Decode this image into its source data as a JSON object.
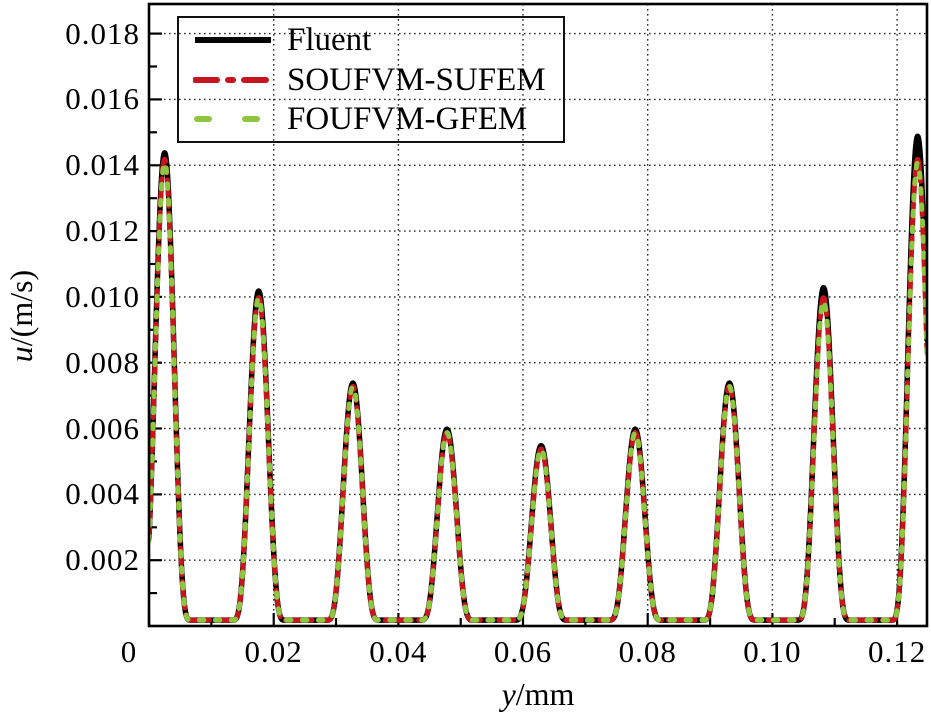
{
  "figure": {
    "background": "#ffffff",
    "frame_color": "#000000",
    "grid_color": "#2a2a2a"
  },
  "chart_data": {
    "type": "line",
    "title": "",
    "xlabel_italic": "y",
    "xlabel_rest": "/mm",
    "ylabel_italic": "u",
    "ylabel_rest": "/(m/s)",
    "xlim": [
      0,
      0.1248
    ],
    "ylim": [
      0,
      0.0189
    ],
    "x_major_ticks": [
      0,
      0.02,
      0.04,
      0.06,
      0.08,
      0.1,
      0.12
    ],
    "x_tick_labels": [
      "0",
      "0.02",
      "0.04",
      "0.06",
      "0.08",
      "0.10",
      "0.12"
    ],
    "x_minor_step": 0.01,
    "y_major_ticks": [
      0.002,
      0.004,
      0.006,
      0.008,
      0.01,
      0.012,
      0.014,
      0.016,
      0.018
    ],
    "y_tick_labels": [
      "0.002",
      "0.004",
      "0.006",
      "0.008",
      "0.010",
      "0.012",
      "0.014",
      "0.016",
      "0.018"
    ],
    "y_minor_step": 0.001,
    "grid": "dotted",
    "legend_position": "top-left",
    "valley_floor": 0.00018,
    "peak_centers": [
      0.0025,
      0.0176,
      0.0327,
      0.0478,
      0.0629,
      0.078,
      0.0931,
      0.1082,
      0.1233
    ],
    "peak_half_width": 0.0042,
    "peak_shape_exponent": 4,
    "series": [
      {
        "name": "Fluent",
        "color": "#000000",
        "style": "solid",
        "peak_heights": [
          0.0142,
          0.01,
          0.0072,
          0.0058,
          0.0053,
          0.0058,
          0.0072,
          0.0101,
          0.0147
        ]
      },
      {
        "name": "SOUFVM-SUFEM",
        "color": "#c8141e",
        "style": "dash-dot",
        "peak_heights": [
          0.014,
          0.0098,
          0.0071,
          0.0057,
          0.0052,
          0.0057,
          0.0071,
          0.0098,
          0.014
        ]
      },
      {
        "name": "FOUFVM-GFEM",
        "color": "#8dc63f",
        "style": "dashed",
        "peak_heights": [
          0.0139,
          0.0098,
          0.0071,
          0.0057,
          0.0052,
          0.0057,
          0.0071,
          0.0097,
          0.0139
        ]
      }
    ]
  }
}
